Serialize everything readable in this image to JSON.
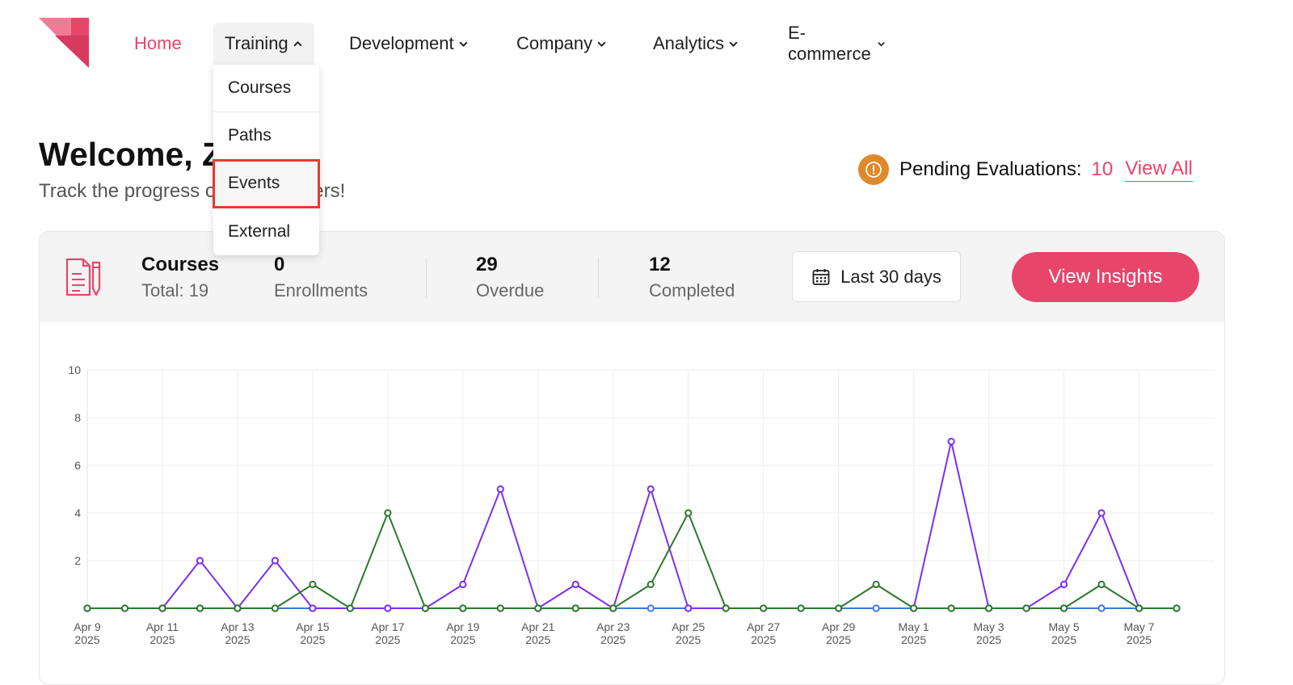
{
  "nav": {
    "home": "Home",
    "training": "Training",
    "development": "Development",
    "company": "Company",
    "analytics": "Analytics",
    "ecommerce": "E-commerce",
    "training_menu": [
      "Courses",
      "Paths",
      "Events",
      "External"
    ]
  },
  "welcome": {
    "title": "Welcome, Z",
    "subtitle": "Track the progress of your learners!"
  },
  "pending": {
    "label": "Pending Evaluations:",
    "count": "10",
    "link": "View All"
  },
  "stats": {
    "title": "Courses",
    "total": "Total: 19",
    "enrollments_value": "0",
    "enrollments_label": "Enrollments",
    "overdue_value": "29",
    "overdue_label": "Overdue",
    "completed_value": "12",
    "completed_label": "Completed",
    "date_range": "Last 30 days",
    "insights_button": "View Insights"
  },
  "colors": {
    "accent": "#e8456b",
    "series_purple": "#7d2ff0",
    "series_green": "#2b7a2b",
    "series_blue": "#3a7bd5",
    "warning": "#e0892b"
  },
  "chart_data": {
    "type": "line",
    "ylim": [
      0,
      10
    ],
    "yticks": [
      2,
      4,
      6,
      8,
      10
    ],
    "x": [
      "Apr 9 2025",
      "Apr 10 2025",
      "Apr 11 2025",
      "Apr 12 2025",
      "Apr 13 2025",
      "Apr 14 2025",
      "Apr 15 2025",
      "Apr 16 2025",
      "Apr 17 2025",
      "Apr 18 2025",
      "Apr 19 2025",
      "Apr 20 2025",
      "Apr 21 2025",
      "Apr 22 2025",
      "Apr 23 2025",
      "Apr 24 2025",
      "Apr 25 2025",
      "Apr 26 2025",
      "Apr 27 2025",
      "Apr 28 2025",
      "Apr 29 2025",
      "Apr 30 2025",
      "May 1 2025",
      "May 2 2025",
      "May 3 2025",
      "May 4 2025",
      "May 5 2025",
      "May 6 2025",
      "May 7 2025",
      "May 8 2025"
    ],
    "xtick_labels": [
      [
        "Apr 9",
        "2025"
      ],
      [
        "Apr 11",
        "2025"
      ],
      [
        "Apr 13",
        "2025"
      ],
      [
        "Apr 15",
        "2025"
      ],
      [
        "Apr 17",
        "2025"
      ],
      [
        "Apr 19",
        "2025"
      ],
      [
        "Apr 21",
        "2025"
      ],
      [
        "Apr 23",
        "2025"
      ],
      [
        "Apr 25",
        "2025"
      ],
      [
        "Apr 27",
        "2025"
      ],
      [
        "Apr 29",
        "2025"
      ],
      [
        "May 1",
        "2025"
      ],
      [
        "May 3",
        "2025"
      ],
      [
        "May 5",
        "2025"
      ],
      [
        "May 7",
        "2025"
      ]
    ],
    "grid": true,
    "series": [
      {
        "color": "#3a7bd5",
        "values": [
          0,
          0,
          0,
          0,
          0,
          0,
          0,
          0,
          0,
          0,
          0,
          0,
          0,
          0,
          0,
          0,
          0,
          0,
          0,
          0,
          0,
          0,
          0,
          0,
          0,
          0,
          0,
          0,
          0,
          0
        ]
      },
      {
        "color": "#7d2ff0",
        "values": [
          null,
          null,
          0,
          2,
          0,
          2,
          0,
          0,
          0,
          0,
          1,
          5,
          0,
          1,
          0,
          5,
          0,
          0,
          null,
          null,
          null,
          null,
          0,
          7,
          0,
          0,
          1,
          4,
          0,
          null
        ]
      },
      {
        "color": "#2b7a2b",
        "values": [
          0,
          0,
          0,
          0,
          0,
          0,
          1,
          0,
          4,
          0,
          0,
          0,
          0,
          0,
          0,
          1,
          4,
          0,
          0,
          0,
          0,
          1,
          0,
          0,
          0,
          0,
          0,
          1,
          0,
          0
        ]
      }
    ]
  }
}
